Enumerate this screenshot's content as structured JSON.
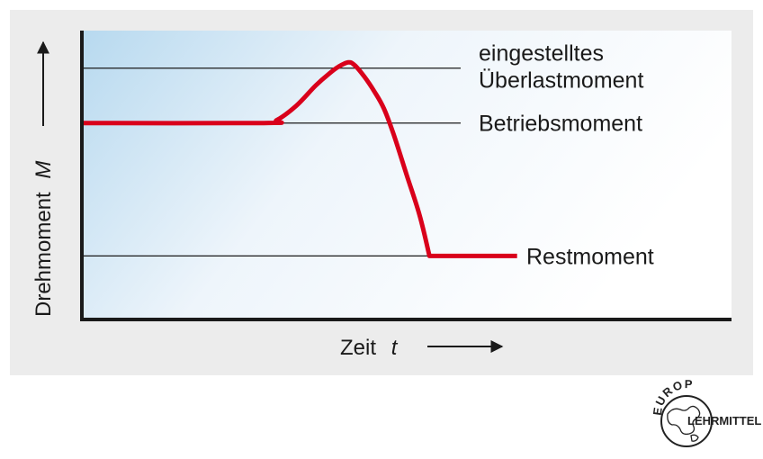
{
  "chart_data": {
    "type": "line",
    "title": "",
    "xlabel": "Zeit",
    "xlabel_symbol": "t",
    "ylabel": "Drehmoment",
    "ylabel_symbol": "M",
    "xlim": [
      0,
      100
    ],
    "ylim": [
      0,
      100
    ],
    "ticks": false,
    "grid": false,
    "reference_lines": [
      {
        "label_lines": [
          "eingestelltes",
          "Überlastmoment"
        ],
        "y": 87
      },
      {
        "label_lines": [
          "Betriebsmoment"
        ],
        "y": 68
      },
      {
        "label_lines": [
          "Restmoment"
        ],
        "y": 22
      }
    ],
    "series": [
      {
        "color": "#d9001b",
        "points": [
          [
            0,
            68
          ],
          [
            28,
            68
          ],
          [
            30,
            69
          ],
          [
            33,
            74
          ],
          [
            36,
            81
          ],
          [
            38,
            85
          ],
          [
            39.5,
            87.5
          ],
          [
            41,
            89
          ],
          [
            42,
            88
          ],
          [
            43.5,
            84
          ],
          [
            45,
            79
          ],
          [
            46.5,
            73
          ],
          [
            48,
            64
          ],
          [
            50,
            50
          ],
          [
            52,
            36
          ],
          [
            53.5,
            22
          ],
          [
            67,
            22
          ]
        ]
      }
    ]
  },
  "colors": {
    "plot_background_edge": "#b7d9ef",
    "plot_background_center": "#eef5fb",
    "panel_background": "#ececec",
    "curve": "#d9001b",
    "axis": "#1a1a1a"
  },
  "logo": {
    "top_text": "EUROPA",
    "right_text": "LEHRMITTEL"
  }
}
